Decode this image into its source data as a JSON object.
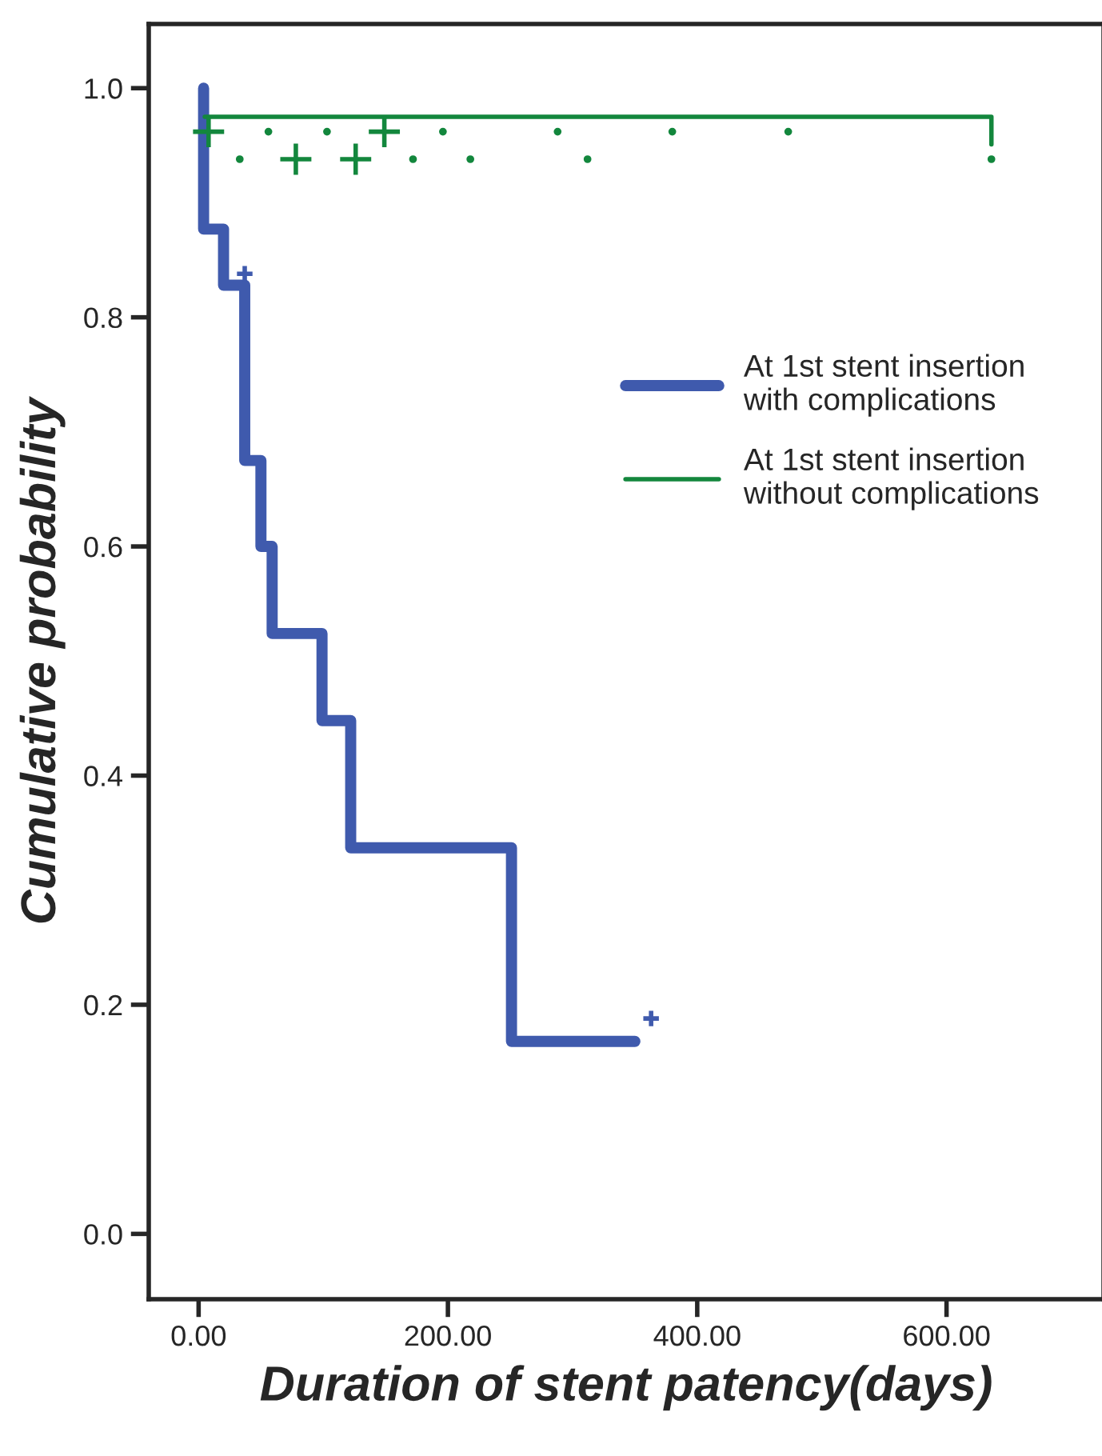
{
  "chart_data": {
    "type": "step",
    "xlabel": "Duration of stent patency(days)",
    "ylabel": "Cumulative probability",
    "xlim": [
      -40,
      726
    ],
    "ylim": [
      -0.057,
      1.056
    ],
    "xticks": [
      {
        "value": 0,
        "label": "0.00"
      },
      {
        "value": 200,
        "label": "200.00"
      },
      {
        "value": 400,
        "label": "400.00"
      },
      {
        "value": 600,
        "label": "600.00"
      }
    ],
    "yticks": [
      {
        "value": 0,
        "label": "0.0"
      },
      {
        "value": 0.2,
        "label": "0.2"
      },
      {
        "value": 0.4,
        "label": "0.4"
      },
      {
        "value": 0.6,
        "label": "0.6"
      },
      {
        "value": 0.8,
        "label": "0.8"
      },
      {
        "value": 1.0,
        "label": "1.0"
      }
    ],
    "grid": false,
    "legend": "right",
    "series": [
      {
        "name": "At 1st stent insertion\nwith complications",
        "color": "#3f5aad",
        "marker": "none",
        "x": [
          4,
          4,
          20,
          37,
          50,
          59,
          99,
          122,
          251,
          350
        ],
        "values": [
          1.0,
          0.877,
          0.828,
          0.675,
          0.6,
          0.524,
          0.448,
          0.337,
          0.168,
          0.168
        ]
      },
      {
        "name": "At 1st stent insertion\nwithout complications",
        "color": "#13873d",
        "marker": "none",
        "x": [
          5,
          636
        ],
        "values": [
          0.975,
          0.951
        ]
      },
      {
        "type": "scatter",
        "color": "#3f5aad",
        "marker": "cross",
        "x": [
          37,
          363
        ],
        "values": [
          0.838,
          0.188
        ]
      },
      {
        "type": "scatter",
        "color": "#13873d",
        "marker": "cross",
        "x": [
          8,
          78,
          126,
          149
        ],
        "values": [
          0.962,
          0.938,
          0.938,
          0.962
        ]
      },
      {
        "type": "scatter",
        "color": "#13873d",
        "marker": "circle",
        "x": [
          56,
          103,
          196,
          288,
          380,
          473,
          33,
          172,
          218,
          312,
          636
        ],
        "values": [
          0.962,
          0.962,
          0.962,
          0.962,
          0.962,
          0.962,
          0.938,
          0.938,
          0.938,
          0.938,
          0.938
        ]
      }
    ]
  }
}
